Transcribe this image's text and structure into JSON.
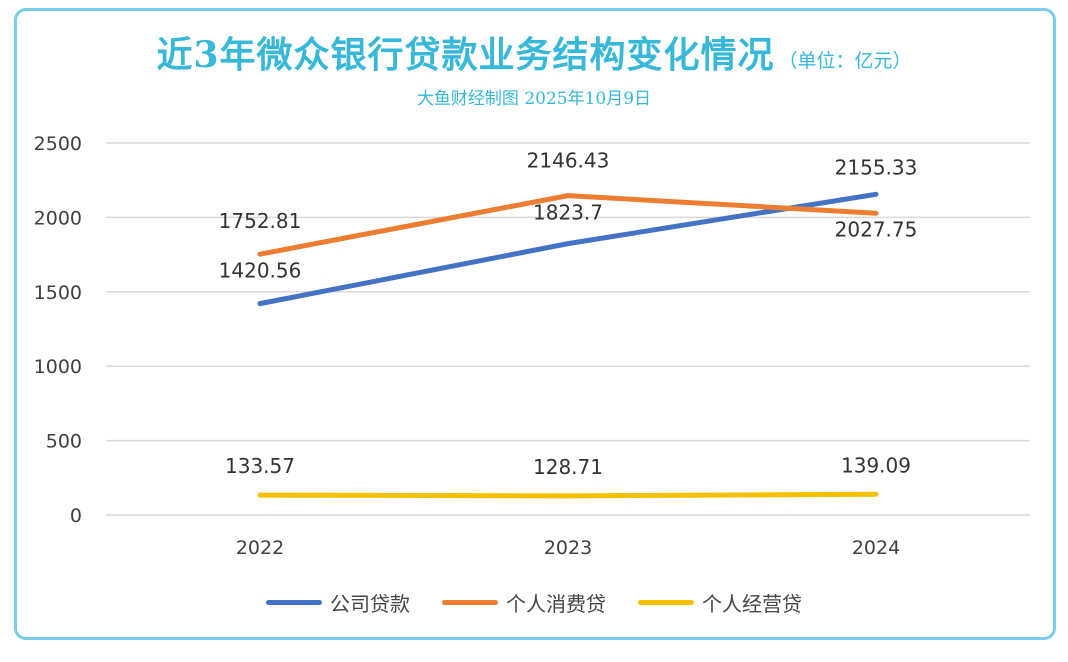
{
  "title": "近3年微众银行贷款业务结构变化情况",
  "unit": "（单位：亿元）",
  "subtitle": "大鱼财经制图 2025年10月9日",
  "chart_data": {
    "type": "line",
    "categories": [
      "2022",
      "2023",
      "2024"
    ],
    "ylim": [
      0,
      2500
    ],
    "yticks": [
      "0",
      "500",
      "1000",
      "1500",
      "2000",
      "2500"
    ],
    "grid": true,
    "legend_placement": "bottom",
    "series": [
      {
        "name": "公司贷款",
        "color": "#4472c4",
        "values": [
          1420.56,
          1823.7,
          2155.33
        ],
        "labels": [
          "1420.56",
          "1823.7",
          "2155.33"
        ]
      },
      {
        "name": "个人消费贷",
        "color": "#ed7d31",
        "values": [
          1752.81,
          2146.43,
          2027.75
        ],
        "labels": [
          "1752.81",
          "2146.43",
          "2027.75"
        ]
      },
      {
        "name": "个人经营贷",
        "color": "#f5c000",
        "values": [
          133.57,
          128.71,
          139.09
        ],
        "labels": [
          "133.57",
          "128.71",
          "139.09"
        ]
      }
    ]
  }
}
